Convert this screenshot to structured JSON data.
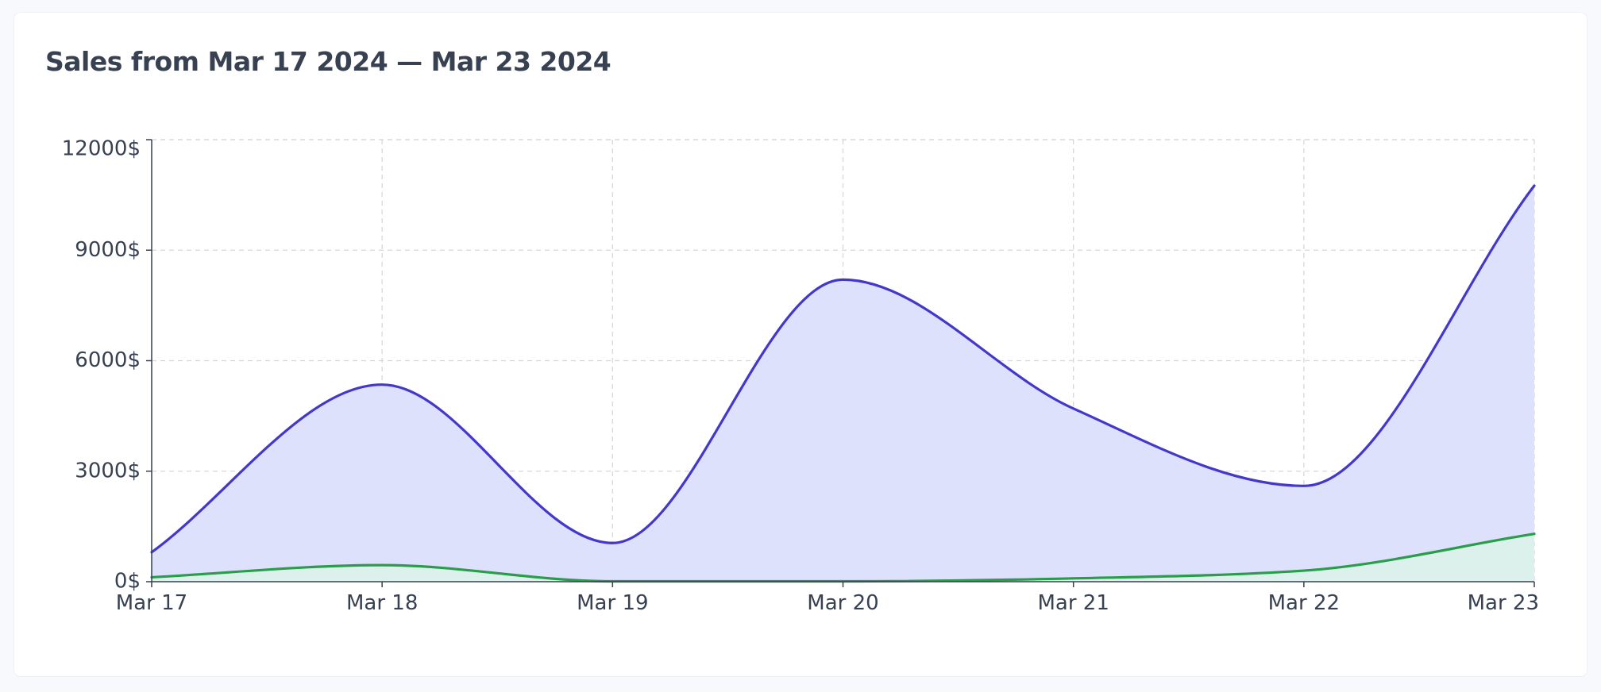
{
  "chart_data": {
    "type": "area",
    "title": "Sales from Mar 17 2024 — Mar 23 2024",
    "xlabel": "",
    "ylabel": "",
    "categories": [
      "Mar 17",
      "Mar 18",
      "Mar 19",
      "Mar 20",
      "Mar 21",
      "Mar 22",
      "Mar 23"
    ],
    "ylim": [
      0,
      12000
    ],
    "yticks": [
      0,
      3000,
      6000,
      9000,
      12000
    ],
    "ytick_suffix": "$",
    "ytick_labels": [
      "0$",
      "3000$",
      "6000$",
      "9000$",
      "12000$"
    ],
    "grid": true,
    "legend": "none",
    "series": [
      {
        "values": [
          800,
          5350,
          1050,
          8200,
          4700,
          2600,
          10750
        ],
        "color": "#4338ca",
        "fill": "#dee1fc"
      },
      {
        "values": [
          120,
          450,
          10,
          10,
          90,
          300,
          1300
        ],
        "color": "#2a9d4b",
        "fill": "#dcf1ec"
      }
    ]
  }
}
